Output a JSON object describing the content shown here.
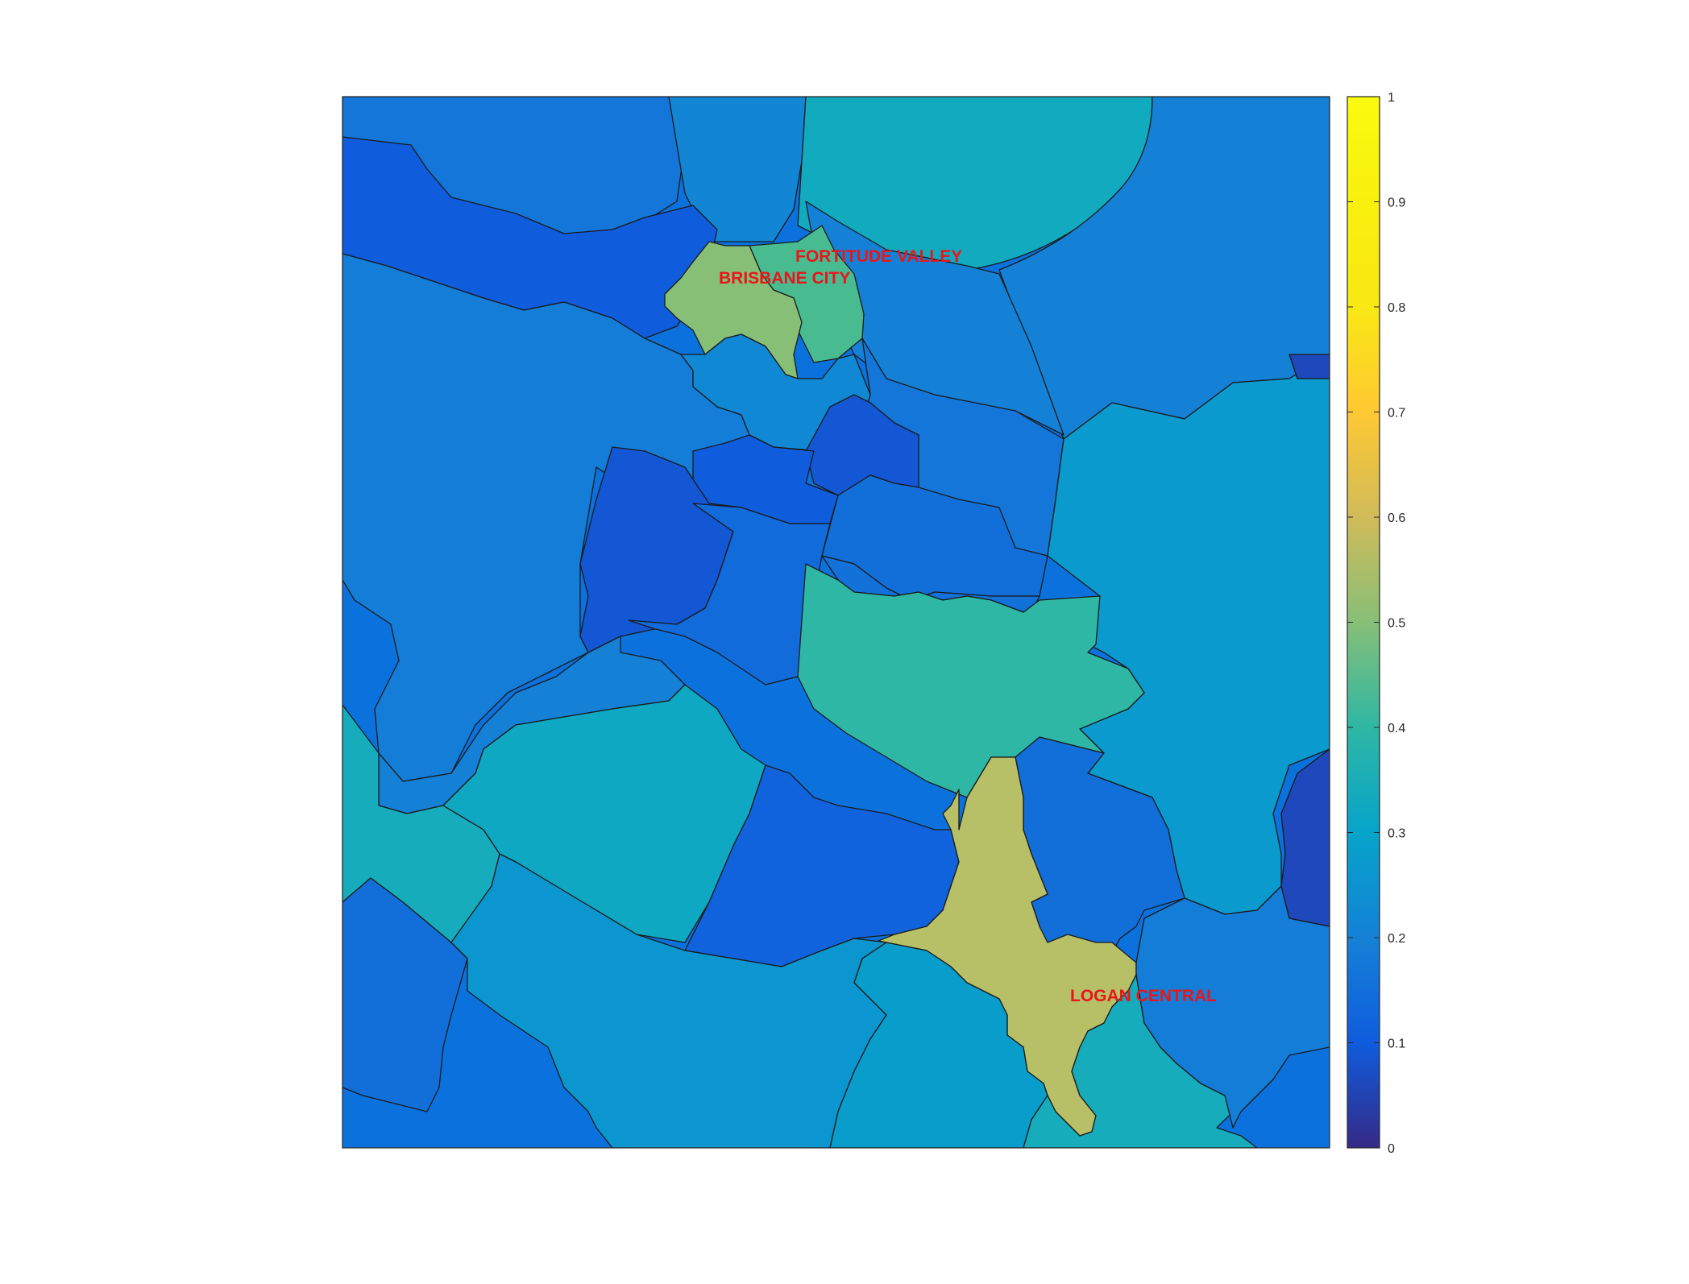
{
  "map": {
    "colormap": "parula",
    "labels": [
      {
        "id": "fortitude-valley",
        "text": "FORTITUDE VALLEY"
      },
      {
        "id": "brisbane-city",
        "text": "BRISBANE CITY"
      },
      {
        "id": "logan-central",
        "text": "LOGAN CENTRAL"
      }
    ],
    "regions": [
      {
        "id": "r-nw-top",
        "value": 0.17
      },
      {
        "id": "r-north-mid",
        "value": 0.21
      },
      {
        "id": "r-ne-top",
        "value": 0.33
      },
      {
        "id": "r-far-ne",
        "value": 0.2
      },
      {
        "id": "r-west-band",
        "value": 0.1
      },
      {
        "id": "r-cbd-north",
        "value": 0.2
      },
      {
        "id": "r-fortitude-valley",
        "value": 0.45
      },
      {
        "id": "r-brisbane-city",
        "value": 0.6
      },
      {
        "id": "r-west-large",
        "value": 0.19
      },
      {
        "id": "r-inner-ne",
        "value": 0.17
      },
      {
        "id": "r-river-inner",
        "value": 0.22
      },
      {
        "id": "r-dark-small",
        "value": 0.09
      },
      {
        "id": "r-inner-s",
        "value": 0.1
      },
      {
        "id": "r-mid-east",
        "value": 0.15
      },
      {
        "id": "r-east-large",
        "value": 0.27
      },
      {
        "id": "r-far-east-dark",
        "value": 0.06
      },
      {
        "id": "r-sw-dark",
        "value": 0.09
      },
      {
        "id": "r-sw-inner",
        "value": 0.2
      },
      {
        "id": "r-mid-strip",
        "value": 0.14
      },
      {
        "id": "r-south-mid",
        "value": 0.16
      },
      {
        "id": "r-teal-mid",
        "value": 0.4
      },
      {
        "id": "r-west-lower",
        "value": 0.34
      },
      {
        "id": "r-central-lower",
        "value": 0.32
      },
      {
        "id": "r-south-dark",
        "value": 0.12
      },
      {
        "id": "r-se-blue",
        "value": 0.15
      },
      {
        "id": "r-logan-central",
        "value": 0.71
      },
      {
        "id": "r-sw-corner",
        "value": 0.15
      },
      {
        "id": "r-south-wide",
        "value": 0.26
      },
      {
        "id": "r-south-center",
        "value": 0.28
      },
      {
        "id": "r-se-teal",
        "value": 0.34
      },
      {
        "id": "r-far-se",
        "value": 0.19
      },
      {
        "id": "r-far-east-dark-2",
        "value": 0.06
      }
    ]
  },
  "colorbar": {
    "min": 0,
    "max": 1,
    "ticks": [
      "0",
      "0.1",
      "0.2",
      "0.3",
      "0.4",
      "0.5",
      "0.6",
      "0.7",
      "0.8",
      "0.9",
      "1"
    ]
  }
}
